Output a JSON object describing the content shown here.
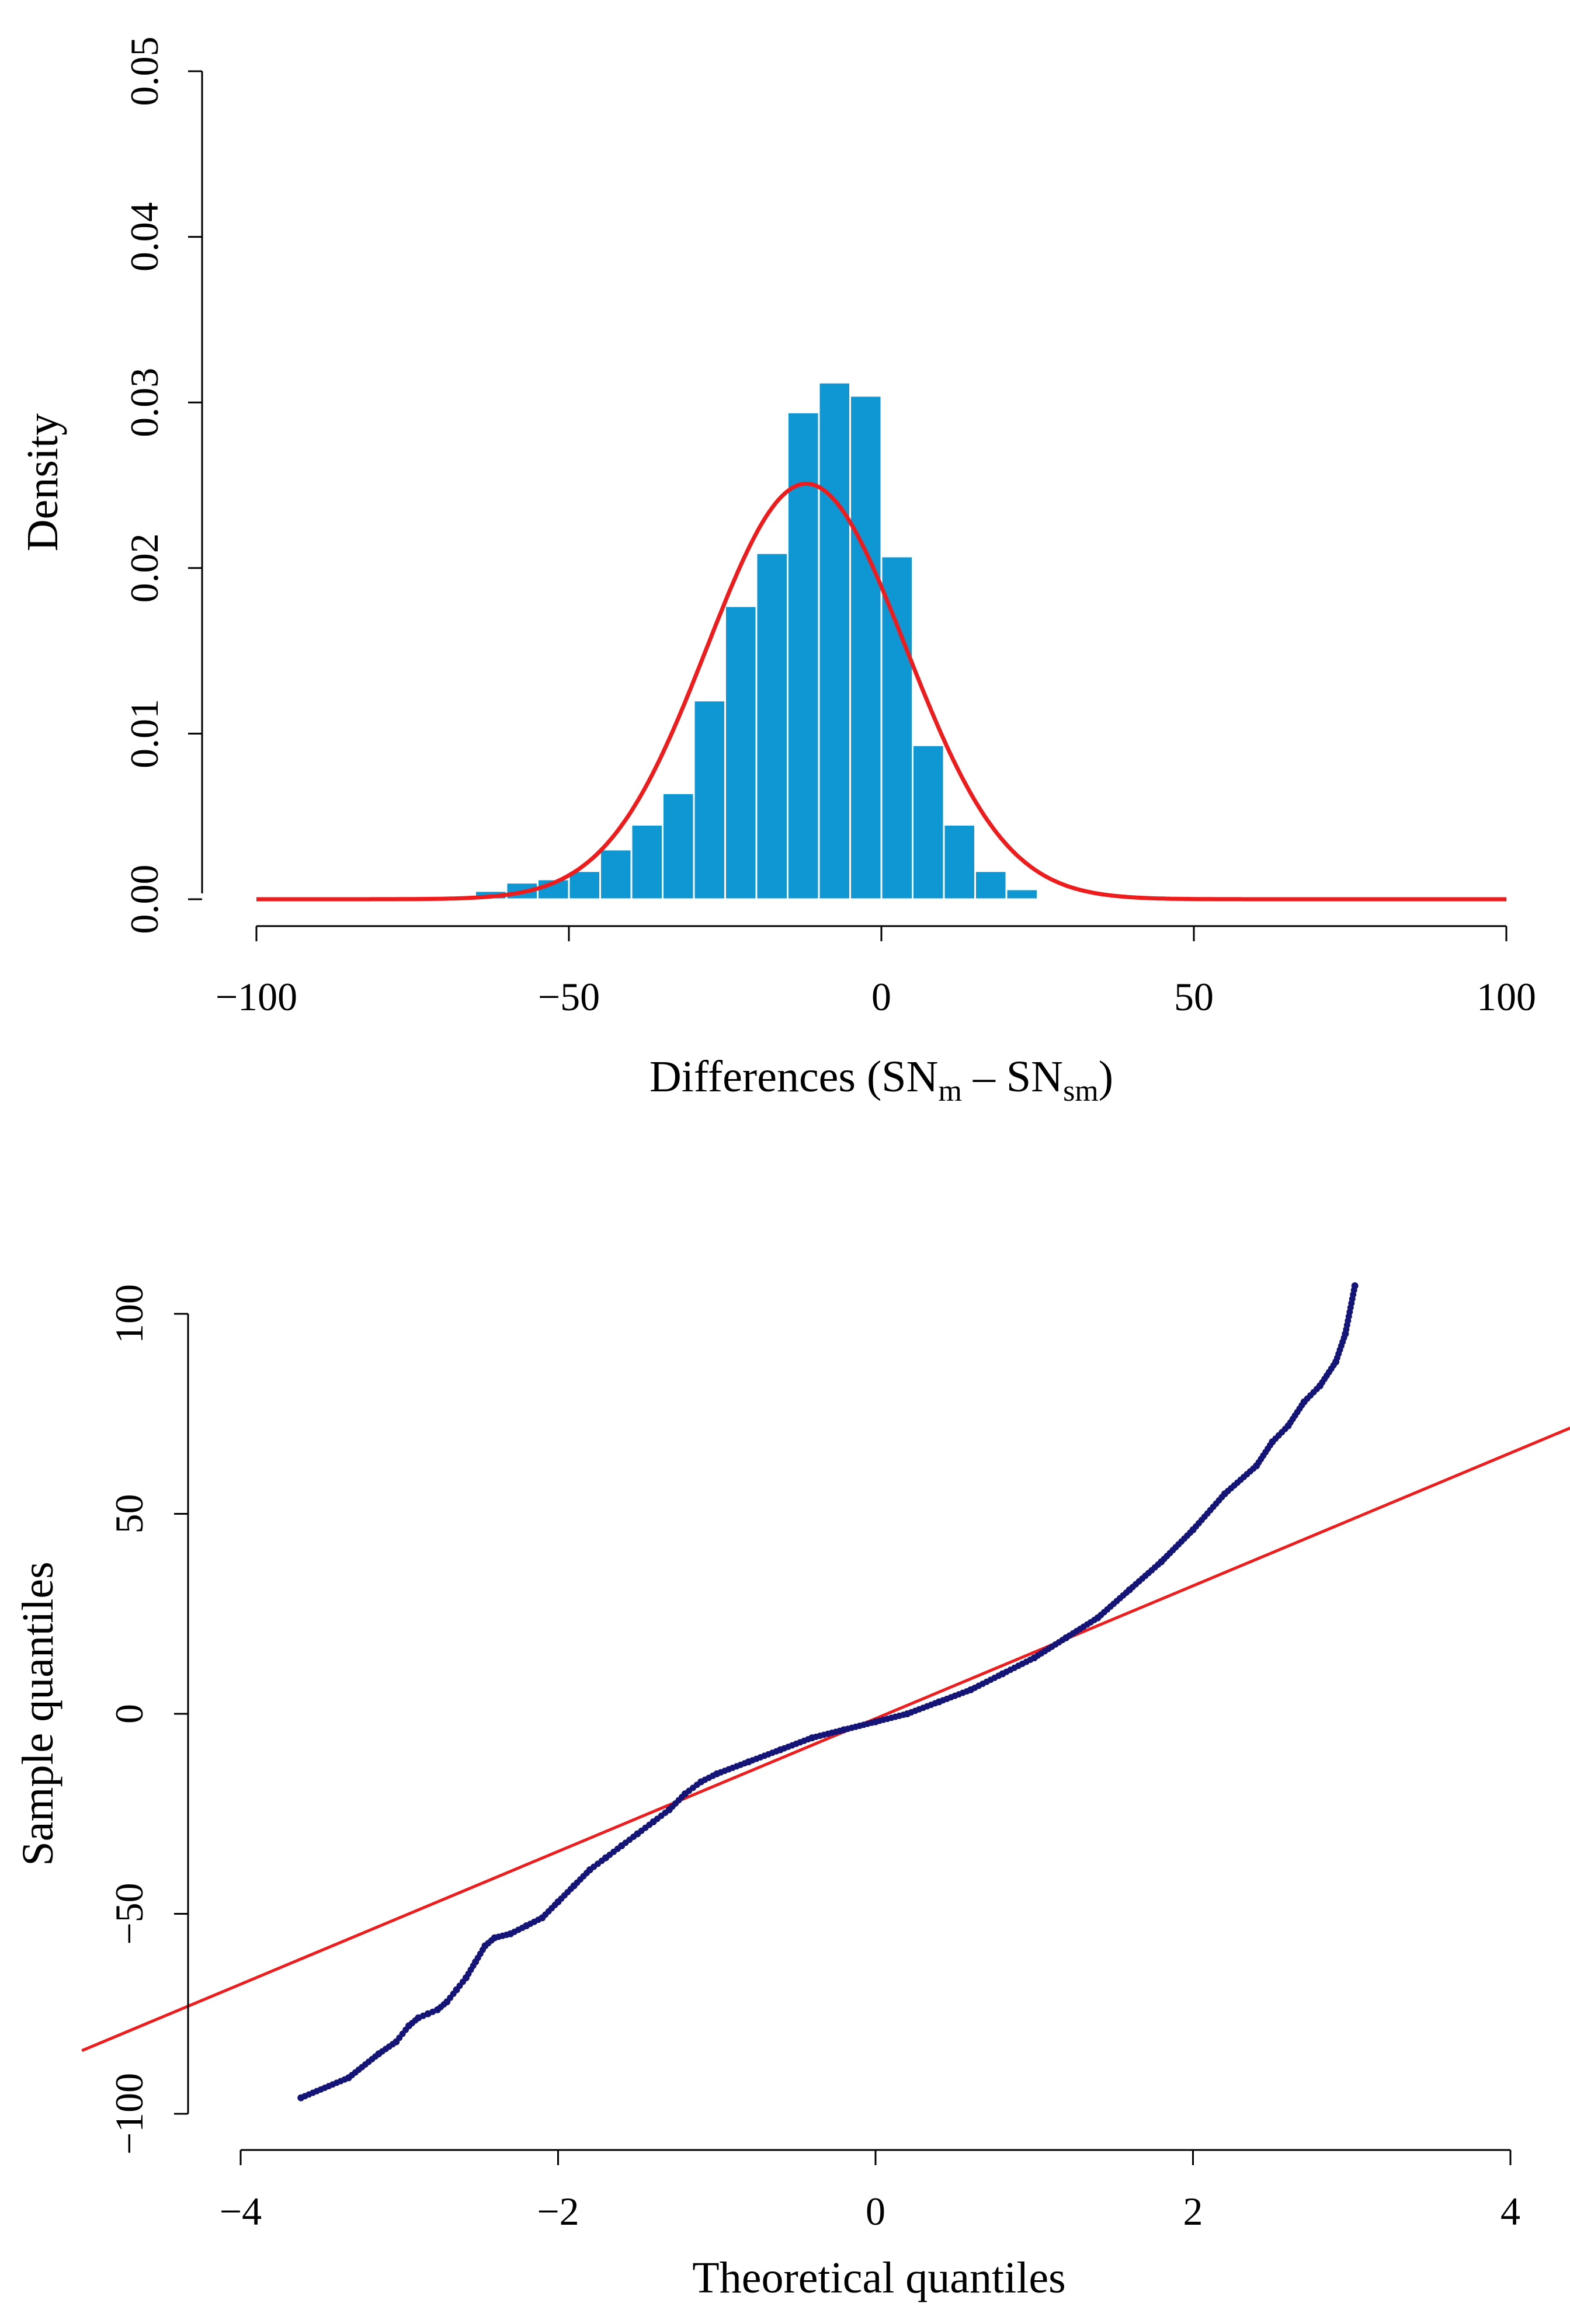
{
  "chart_data": [
    {
      "type": "histogram",
      "title": "",
      "xlabel": "Differences (SN",
      "xlabel_sub_1": "m",
      "xlabel_mid": " – SN",
      "xlabel_sub_2": "sm",
      "xlabel_close": ")",
      "ylabel": "Density",
      "xlim": [
        -100,
        100
      ],
      "ylim": [
        0,
        0.05
      ],
      "x_ticks": [
        -100,
        -50,
        0,
        50,
        100
      ],
      "x_tick_labels": [
        "−100",
        "−50",
        "0",
        "50",
        "100"
      ],
      "y_ticks": [
        0,
        0.01,
        0.02,
        0.03,
        0.04,
        0.05
      ],
      "y_tick_labels": [
        "0.00",
        "0.01",
        "0.02",
        "0.03",
        "0.04",
        "0.05"
      ],
      "bar_color": "#0e97d3",
      "bins": [
        {
          "x0": -80,
          "x1": -75,
          "density": 5e-05
        },
        {
          "x0": -75,
          "x1": -70,
          "density": 3e-05
        },
        {
          "x0": -70,
          "x1": -65,
          "density": 0.0002
        },
        {
          "x0": -65,
          "x1": -60,
          "density": 0.0005
        },
        {
          "x0": -60,
          "x1": -55,
          "density": 0.001
        },
        {
          "x0": -55,
          "x1": -50,
          "density": 0.0012
        },
        {
          "x0": -50,
          "x1": -45,
          "density": 0.0017
        },
        {
          "x0": -45,
          "x1": -40,
          "density": 0.003
        },
        {
          "x0": -40,
          "x1": -35,
          "density": 0.0045
        },
        {
          "x0": -35,
          "x1": -30,
          "density": 0.0064
        },
        {
          "x0": -30,
          "x1": -25,
          "density": 0.012
        },
        {
          "x0": -25,
          "x1": -20,
          "density": 0.0177
        },
        {
          "x0": -20,
          "x1": -15,
          "density": 0.0209
        },
        {
          "x0": -15,
          "x1": -10,
          "density": 0.0294
        },
        {
          "x0": -10,
          "x1": -5,
          "density": 0.0312
        },
        {
          "x0": -5,
          "x1": 0,
          "density": 0.0304
        },
        {
          "x0": 0,
          "x1": 5,
          "density": 0.0207
        },
        {
          "x0": 5,
          "x1": 10,
          "density": 0.0093
        },
        {
          "x0": 10,
          "x1": 15,
          "density": 0.0045
        },
        {
          "x0": 15,
          "x1": 20,
          "density": 0.0017
        },
        {
          "x0": 20,
          "x1": 25,
          "density": 0.0006
        },
        {
          "x0": 25,
          "x1": 30,
          "density": 0.0001
        }
      ],
      "normal_curve": {
        "mean": -12,
        "sd": 15.9,
        "color": "#ee1c1c"
      }
    },
    {
      "type": "scatter",
      "title": "",
      "xlabel": "Theoretical quantiles",
      "ylabel": "Sample quantiles",
      "xlim": [
        -4,
        4
      ],
      "ylim": [
        -100,
        100
      ],
      "x_ticks": [
        -4,
        -2,
        0,
        2,
        4
      ],
      "x_tick_labels": [
        "−4",
        "−2",
        "0",
        "2",
        "4"
      ],
      "y_ticks": [
        -100,
        -50,
        0,
        50,
        100
      ],
      "y_tick_labels": [
        "−100",
        "−50",
        "0",
        "50",
        "100"
      ],
      "point_color": "#151578",
      "qq_points": [
        [
          -3.62,
          -96
        ],
        [
          -3.32,
          -91
        ],
        [
          -3.13,
          -85
        ],
        [
          -3.02,
          -82
        ],
        [
          -2.94,
          -78
        ],
        [
          -2.88,
          -76
        ],
        [
          -2.82,
          -75
        ],
        [
          -2.76,
          -74
        ],
        [
          -2.7,
          -72
        ],
        [
          -2.64,
          -69
        ],
        [
          -2.58,
          -66
        ],
        [
          -2.52,
          -62
        ],
        [
          -2.46,
          -58
        ],
        [
          -2.4,
          -56
        ],
        [
          -2.3,
          -55
        ],
        [
          -2.2,
          -53
        ],
        [
          -2.1,
          -51
        ],
        [
          -2.0,
          -47
        ],
        [
          -1.9,
          -43
        ],
        [
          -1.8,
          -39
        ],
        [
          -1.7,
          -36
        ],
        [
          -1.6,
          -33
        ],
        [
          -1.5,
          -30
        ],
        [
          -1.4,
          -27
        ],
        [
          -1.3,
          -24
        ],
        [
          -1.2,
          -20
        ],
        [
          -1.1,
          -17
        ],
        [
          -1.0,
          -15
        ],
        [
          -0.8,
          -12
        ],
        [
          -0.6,
          -9
        ],
        [
          -0.4,
          -6
        ],
        [
          -0.2,
          -4
        ],
        [
          0.0,
          -2
        ],
        [
          0.2,
          0
        ],
        [
          0.4,
          3
        ],
        [
          0.6,
          6
        ],
        [
          0.8,
          10
        ],
        [
          1.0,
          14
        ],
        [
          1.2,
          19
        ],
        [
          1.4,
          24
        ],
        [
          1.6,
          31
        ],
        [
          1.8,
          38
        ],
        [
          2.0,
          46
        ],
        [
          2.2,
          55
        ],
        [
          2.4,
          62
        ],
        [
          2.5,
          68
        ],
        [
          2.6,
          72
        ],
        [
          2.7,
          78
        ],
        [
          2.8,
          82
        ],
        [
          2.9,
          88
        ],
        [
          2.96,
          95
        ],
        [
          3.02,
          107
        ]
      ],
      "reference_line": {
        "slope": 16.6,
        "intercept": -1.2,
        "color": "#ee1c1c"
      }
    }
  ]
}
